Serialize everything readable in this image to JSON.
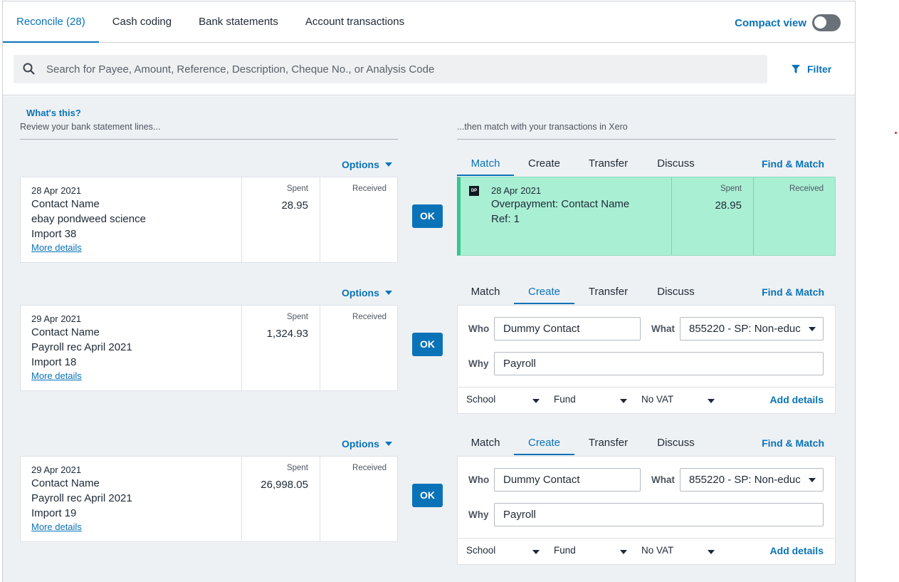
{
  "tabs": [
    {
      "label": "Reconcile (28)"
    },
    {
      "label": "Cash coding"
    },
    {
      "label": "Bank statements"
    },
    {
      "label": "Account transactions"
    }
  ],
  "compact_view": {
    "label": "Compact view",
    "enabled": false
  },
  "search": {
    "placeholder": "Search for Payee, Amount, Reference, Description, Cheque No., or Analysis Code",
    "icon": "search-icon"
  },
  "filter": {
    "label": "Filter",
    "icon": "filter-icon"
  },
  "intro": {
    "whats_this": "What's this?",
    "left_header": "Review your bank statement lines...",
    "right_header": "...then match with your transactions in Xero"
  },
  "labels": {
    "options": "Options",
    "spent": "Spent",
    "received": "Received",
    "more_details": "More details",
    "ok": "OK",
    "find_match": "Find & Match",
    "who": "Who",
    "what": "What",
    "why": "Why",
    "add_details": "Add details",
    "match_tabs": [
      "Match",
      "Create",
      "Transfer",
      "Discuss"
    ]
  },
  "colors": {
    "accent": "#0a73b8",
    "match_bg": "#a9efd4",
    "match_border": "#38c58f"
  },
  "rows": [
    {
      "statement": {
        "date": "28 Apr 2021",
        "contact": "Contact Name",
        "description": "ebay pondweed science",
        "reference": "Import 38",
        "spent": "28.95",
        "received": ""
      },
      "active_tab": "Match",
      "match": {
        "badge": "DP",
        "date": "28 Apr 2021",
        "title": "Overpayment: Contact Name",
        "ref": "Ref: 1",
        "spent": "28.95",
        "received": ""
      }
    },
    {
      "statement": {
        "date": "29 Apr 2021",
        "contact": "Contact Name",
        "description": "Payroll rec April 2021",
        "reference": "Import 18",
        "spent": "1,324.93",
        "received": ""
      },
      "active_tab": "Create",
      "create": {
        "who": "Dummy Contact",
        "what": "855220 - SP: Non-educ",
        "why": "Payroll",
        "school": "School",
        "fund": "Fund",
        "vat": "No VAT"
      }
    },
    {
      "statement": {
        "date": "29 Apr 2021",
        "contact": "Contact Name",
        "description": "Payroll rec April 2021",
        "reference": "Import 19",
        "spent": "26,998.05",
        "received": ""
      },
      "active_tab": "Create",
      "create": {
        "who": "Dummy Contact",
        "what": "855220 - SP: Non-educ",
        "why": "Payroll",
        "school": "School",
        "fund": "Fund",
        "vat": "No VAT"
      }
    }
  ]
}
